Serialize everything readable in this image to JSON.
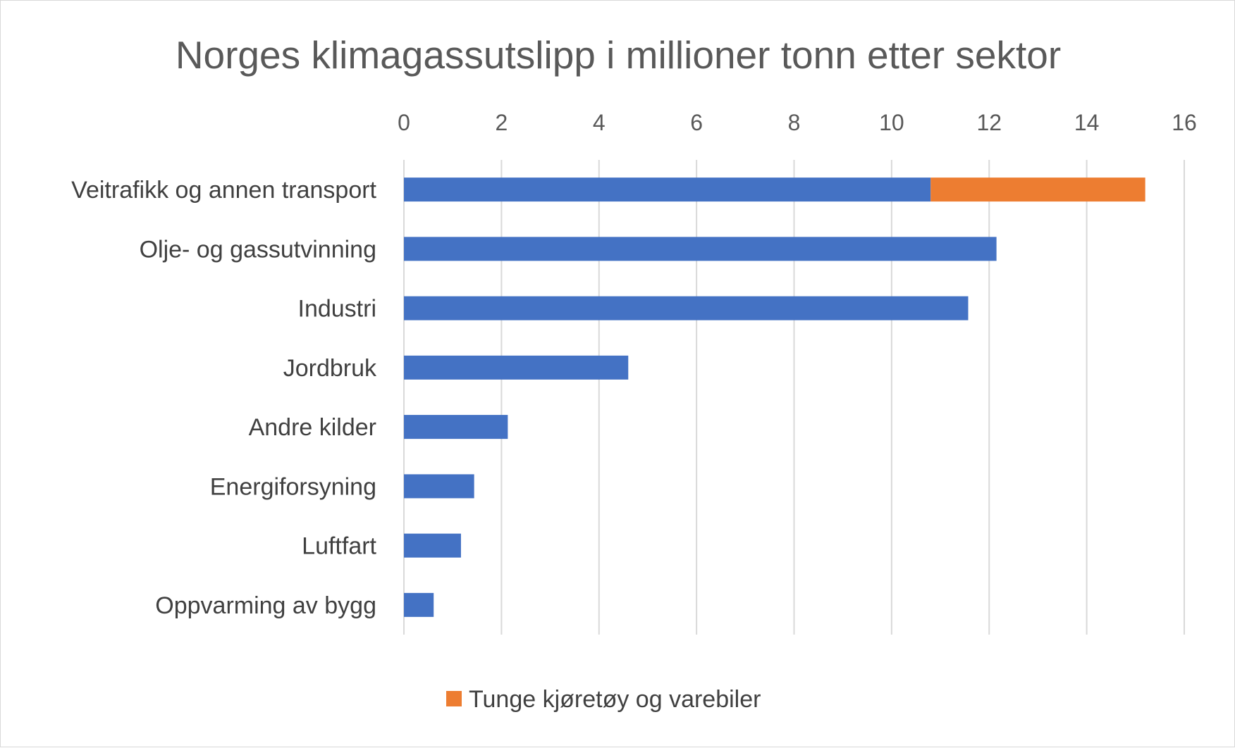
{
  "chart_data": {
    "type": "bar",
    "orientation": "horizontal",
    "stacked": true,
    "title": "Norges klimagassutslipp i millioner tonn etter sektor",
    "categories": [
      "Veitrafikk og annen transport",
      "Olje- og gassutvinning",
      "Industri",
      "Jordbruk",
      "Andre kilder",
      "Energiforsyning",
      "Luftfart",
      "Oppvarming av bygg"
    ],
    "series": [
      {
        "values": [
          10.8,
          12.15,
          11.57,
          4.6,
          2.13,
          1.44,
          1.17,
          0.61
        ]
      },
      {
        "name": "Tunge kjøretøy og varebiler",
        "values": [
          4.4,
          0,
          0,
          0,
          0,
          0,
          0,
          0
        ]
      }
    ],
    "xlim": [
      0,
      16
    ],
    "xticks": [
      0,
      2,
      4,
      6,
      8,
      10,
      12,
      14,
      16
    ],
    "xaxis_position": "top",
    "grid": "vertical",
    "legend_position": "bottom",
    "colors": [
      "#4472C4",
      "#ED7D31"
    ]
  }
}
